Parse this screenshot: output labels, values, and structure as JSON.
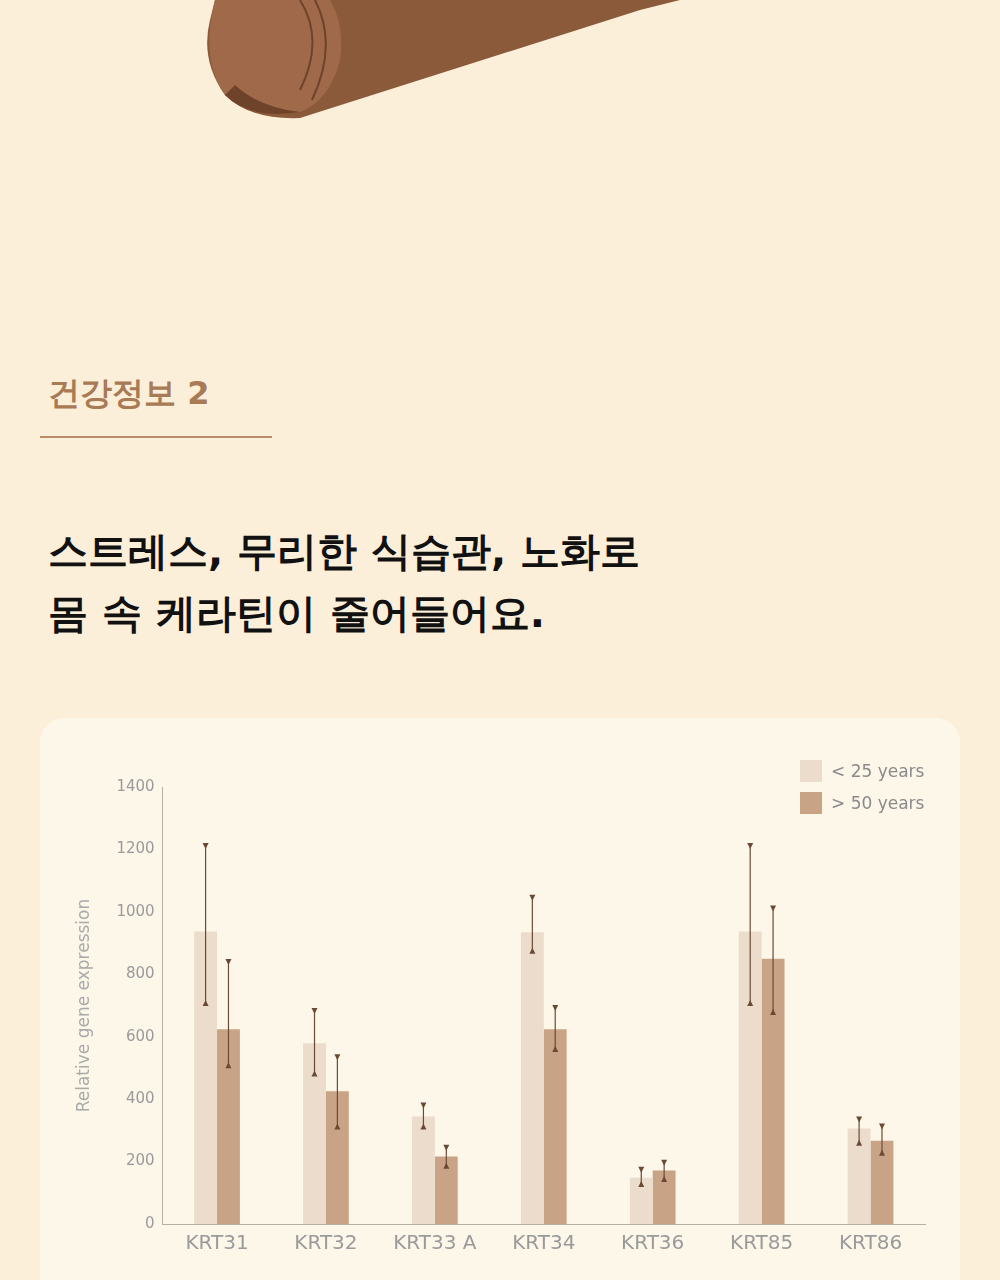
{
  "page": {
    "label": "건강정보 2",
    "headline": [
      "스트레스, 무리한 식습관, 노화로",
      "몸 속 케라틴이 줄어들어요."
    ]
  },
  "chart_data": {
    "type": "bar",
    "categories": [
      "KRT31",
      "KRT32",
      "KRT33 A",
      "KRT34",
      "KRT36",
      "KRT85",
      "KRT86"
    ],
    "series": [
      {
        "name": "< 25 years",
        "color": "#ecdccb",
        "values": [
          937,
          579,
          344,
          935,
          148,
          937,
          306
        ],
        "error_low": [
          702,
          476,
          306,
          869,
          122,
          702,
          254
        ],
        "error_high": [
          1217,
          689,
          386,
          1052,
          180,
          1217,
          341
        ]
      },
      {
        "name": "> 50 years",
        "color": "#c9a385",
        "values": [
          624,
          425,
          216,
          624,
          171,
          850,
          267
        ],
        "error_low": [
          502,
          306,
          180,
          554,
          138,
          673,
          222
        ],
        "error_high": [
          846,
          541,
          251,
          698,
          203,
          1017,
          319
        ]
      }
    ],
    "y_label": "Relative gene expression",
    "ylim": [
      0,
      1400
    ],
    "yticks": [
      0,
      200,
      400,
      600,
      800,
      1000,
      1200,
      1400
    ],
    "grid": false,
    "legend": "top-right",
    "data_labels": false
  }
}
